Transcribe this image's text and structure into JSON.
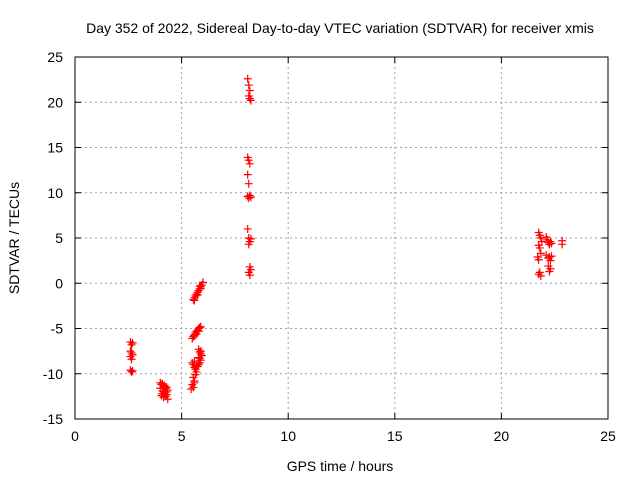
{
  "chart_data": {
    "type": "scatter",
    "title": "Day 352 of 2022, Sidereal Day-to-day VTEC variation (SDTVAR) for receiver xmis",
    "xlabel": "GPS time / hours",
    "ylabel": "SDTVAR / TECUs",
    "xlim": [
      0,
      25
    ],
    "ylim": [
      -15,
      25
    ],
    "xticks": [
      0,
      5,
      10,
      15,
      20,
      25
    ],
    "xtick_labels": [
      "0",
      "5",
      "10",
      "15",
      "20",
      "25"
    ],
    "yticks": [
      -15,
      -10,
      -5,
      0,
      5,
      10,
      15,
      20,
      25
    ],
    "ytick_labels": [
      "-15",
      "-10",
      "-5",
      "0",
      "5",
      "10",
      "15",
      "20",
      "25"
    ],
    "grid": true,
    "marker": "+",
    "series": [
      {
        "name": "SDTVAR",
        "color": "#ff0000",
        "points": [
          [
            2.6,
            -6.5
          ],
          [
            2.65,
            -6.8
          ],
          [
            2.7,
            -6.6
          ],
          [
            2.6,
            -7.5
          ],
          [
            2.65,
            -7.7
          ],
          [
            2.7,
            -7.9
          ],
          [
            2.6,
            -8.1
          ],
          [
            2.65,
            -8.4
          ],
          [
            2.6,
            -9.6
          ],
          [
            2.65,
            -9.8
          ],
          [
            2.7,
            -9.7
          ],
          [
            4.0,
            -11.0
          ],
          [
            4.05,
            -11.2
          ],
          [
            4.1,
            -11.1
          ],
          [
            4.15,
            -11.4
          ],
          [
            4.2,
            -11.3
          ],
          [
            4.25,
            -11.6
          ],
          [
            4.3,
            -11.5
          ],
          [
            4.35,
            -11.8
          ],
          [
            4.0,
            -11.6
          ],
          [
            4.1,
            -11.9
          ],
          [
            4.2,
            -12.1
          ],
          [
            4.3,
            -12.3
          ],
          [
            4.05,
            -12.4
          ],
          [
            4.15,
            -12.6
          ],
          [
            4.25,
            -12.5
          ],
          [
            4.35,
            -12.8
          ],
          [
            4.1,
            -12.2
          ],
          [
            4.3,
            -12.0
          ],
          [
            5.55,
            -1.8
          ],
          [
            5.6,
            -1.6
          ],
          [
            5.65,
            -1.4
          ],
          [
            5.7,
            -1.2
          ],
          [
            5.75,
            -1.0
          ],
          [
            5.8,
            -0.8
          ],
          [
            5.85,
            -0.6
          ],
          [
            5.9,
            -0.4
          ],
          [
            5.95,
            -0.2
          ],
          [
            6.0,
            0.1
          ],
          [
            5.6,
            -1.9
          ],
          [
            5.75,
            -1.3
          ],
          [
            5.9,
            -0.6
          ],
          [
            5.85,
            -0.3
          ],
          [
            5.5,
            -6.1
          ],
          [
            5.55,
            -5.9
          ],
          [
            5.6,
            -5.7
          ],
          [
            5.65,
            -5.5
          ],
          [
            5.7,
            -5.3
          ],
          [
            5.75,
            -5.2
          ],
          [
            5.8,
            -5.0
          ],
          [
            5.85,
            -4.9
          ],
          [
            5.9,
            -4.8
          ],
          [
            5.6,
            -5.8
          ],
          [
            5.7,
            -5.6
          ],
          [
            5.8,
            -5.3
          ],
          [
            5.5,
            -8.8
          ],
          [
            5.55,
            -9.0
          ],
          [
            5.6,
            -9.3
          ],
          [
            5.65,
            -9.5
          ],
          [
            5.7,
            -9.8
          ],
          [
            5.75,
            -9.2
          ],
          [
            5.8,
            -9.0
          ],
          [
            5.85,
            -8.8
          ],
          [
            5.9,
            -8.5
          ],
          [
            5.6,
            -8.6
          ],
          [
            5.7,
            -9.1
          ],
          [
            5.65,
            -10.1
          ],
          [
            5.55,
            -10.4
          ],
          [
            5.6,
            -10.8
          ],
          [
            5.5,
            -11.2
          ],
          [
            5.55,
            -11.5
          ],
          [
            5.45,
            -11.7
          ],
          [
            5.6,
            -11.0
          ],
          [
            5.8,
            -7.3
          ],
          [
            5.85,
            -7.6
          ],
          [
            5.9,
            -7.8
          ],
          [
            5.95,
            -8.0
          ],
          [
            5.8,
            -8.2
          ],
          [
            5.9,
            -7.5
          ],
          [
            5.85,
            -8.3
          ],
          [
            8.1,
            22.6
          ],
          [
            8.15,
            21.9
          ],
          [
            8.2,
            21.3
          ],
          [
            8.15,
            20.7
          ],
          [
            8.25,
            20.2
          ],
          [
            8.2,
            20.4
          ],
          [
            8.1,
            13.9
          ],
          [
            8.15,
            13.6
          ],
          [
            8.2,
            13.2
          ],
          [
            8.1,
            12.0
          ],
          [
            8.15,
            11.0
          ],
          [
            8.1,
            9.6
          ],
          [
            8.15,
            9.4
          ],
          [
            8.2,
            9.7
          ],
          [
            8.25,
            9.5
          ],
          [
            8.1,
            6.0
          ],
          [
            8.15,
            5.0
          ],
          [
            8.2,
            4.6
          ],
          [
            8.25,
            4.9
          ],
          [
            8.15,
            4.3
          ],
          [
            8.2,
            1.8
          ],
          [
            8.15,
            1.2
          ],
          [
            8.25,
            1.5
          ],
          [
            8.2,
            0.9
          ],
          [
            21.75,
            5.6
          ],
          [
            21.8,
            5.3
          ],
          [
            21.85,
            5.0
          ],
          [
            21.9,
            4.6
          ],
          [
            21.75,
            4.2
          ],
          [
            21.8,
            3.9
          ],
          [
            21.85,
            3.3
          ],
          [
            21.7,
            2.9
          ],
          [
            21.75,
            2.6
          ],
          [
            21.8,
            1.2
          ],
          [
            21.75,
            1.0
          ],
          [
            21.85,
            0.8
          ],
          [
            22.1,
            5.1
          ],
          [
            22.15,
            4.8
          ],
          [
            22.2,
            4.5
          ],
          [
            22.25,
            4.3
          ],
          [
            22.3,
            4.6
          ],
          [
            22.35,
            4.4
          ],
          [
            22.1,
            3.1
          ],
          [
            22.2,
            2.8
          ],
          [
            22.3,
            2.5
          ],
          [
            22.25,
            2.9
          ],
          [
            22.35,
            3.0
          ],
          [
            22.2,
            1.9
          ],
          [
            22.3,
            1.6
          ],
          [
            22.25,
            1.3
          ],
          [
            22.85,
            4.7
          ],
          [
            22.85,
            4.3
          ]
        ]
      }
    ]
  }
}
